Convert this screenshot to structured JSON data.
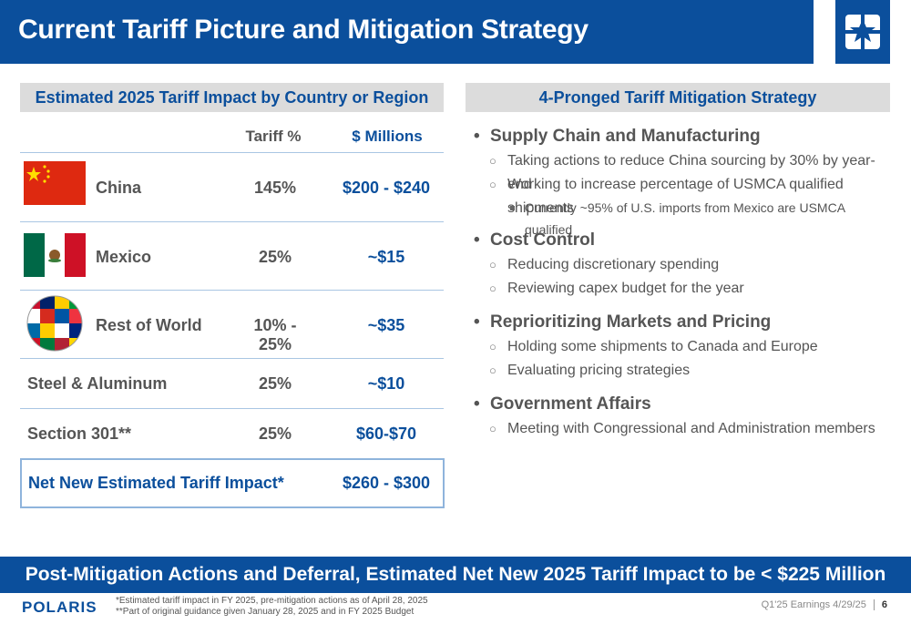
{
  "header": {
    "title": "Current Tariff Picture and Mitigation Strategy"
  },
  "left_panel": {
    "title": "Estimated 2025 Tariff Impact by Country or Region",
    "col_tariff": "Tariff %",
    "col_millions": "$ Millions",
    "rows": [
      {
        "name": "China",
        "tariff": "145%",
        "millions": "$200 - $240"
      },
      {
        "name": "Mexico",
        "tariff": "25%",
        "millions": "~$15"
      },
      {
        "name": "Rest of World",
        "tariff": "10% - 25%",
        "millions": "~$35"
      },
      {
        "name": "Steel & Aluminum",
        "tariff": "25%",
        "millions": "~$10"
      },
      {
        "name": "Section 301**",
        "tariff": "25%",
        "millions": "$60-$70"
      }
    ],
    "net_label": "Net New Estimated Tariff Impact*",
    "net_value": "$260 - $300"
  },
  "right_panel": {
    "title": "4-Pronged Tariff Mitigation Strategy",
    "items": [
      {
        "head": "Supply Chain and Manufacturing",
        "subs": [
          "Taking actions to reduce China sourcing by 30% by year-end",
          "Working to increase percentage of USMCA qualified shipments"
        ],
        "subsub": "Currently ~95% of U.S. imports from Mexico are USMCA qualified"
      },
      {
        "head": "Cost Control",
        "subs": [
          "Reducing discretionary spending",
          "Reviewing capex budget for the year"
        ]
      },
      {
        "head": "Reprioritizing Markets and Pricing",
        "subs": [
          "Holding some shipments to Canada and Europe",
          "Evaluating pricing strategies"
        ]
      },
      {
        "head": "Government Affairs",
        "subs": [
          "Meeting with Congressional and Administration members"
        ]
      }
    ]
  },
  "bottom_banner": "Post-Mitigation Actions and Deferral, Estimated Net New 2025 Tariff Impact to be < $225 Million",
  "footer": {
    "logo_text": "POLARIS",
    "note1": "*Estimated tariff impact in FY 2025, pre-mitigation actions as of April 28, 2025",
    "note2": "**Part of original guidance given January 28, 2025 and in FY 2025 Budget",
    "event": "Q1'25 Earnings 4/29/25",
    "page": "6"
  },
  "colors": {
    "brand_blue": "#0b4f9c",
    "header_gray": "#dcdcdc"
  }
}
